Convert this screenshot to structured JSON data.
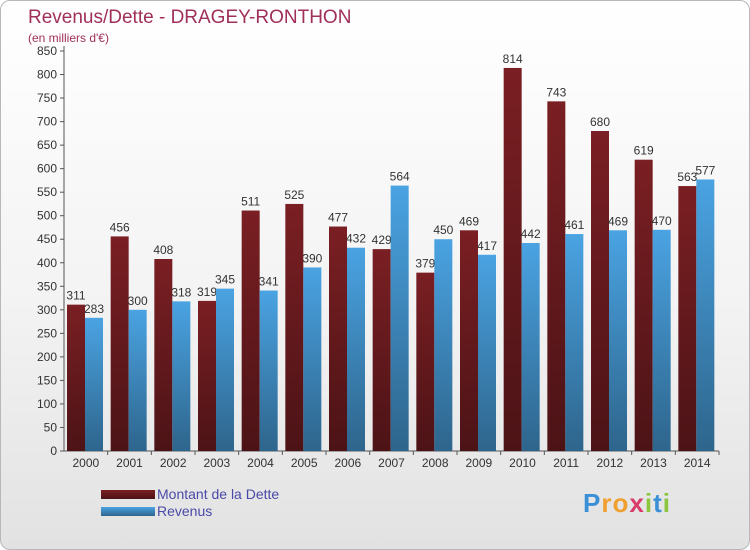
{
  "chart_data": {
    "type": "bar",
    "title": "Revenus/Dette - DRAGEY-RONTHON",
    "subtitle": "(en milliers d'€)",
    "categories": [
      "2000",
      "2001",
      "2002",
      "2003",
      "2004",
      "2005",
      "2006",
      "2007",
      "2008",
      "2009",
      "2010",
      "2011",
      "2012",
      "2013",
      "2014"
    ],
    "series": [
      {
        "name": "Montant de la Dette",
        "color": "#7a1f23",
        "values": [
          311,
          456,
          408,
          319,
          511,
          525,
          477,
          429,
          379,
          469,
          814,
          743,
          680,
          619,
          563
        ]
      },
      {
        "name": "Revenus",
        "color": "#4aa3e2",
        "values": [
          283,
          300,
          318,
          345,
          341,
          390,
          432,
          564,
          450,
          417,
          442,
          461,
          469,
          470,
          577
        ]
      }
    ],
    "ylim": [
      0,
      850
    ],
    "ytick_step": 50,
    "grid": false,
    "legend_position": "bottom-left"
  },
  "branding": {
    "logo_letters": [
      "P",
      "r",
      "o",
      "x",
      "i",
      "t",
      "i"
    ],
    "logo_colors": [
      "#3a8fd6",
      "#f0a030",
      "#f0a030",
      "#d83a6a",
      "#8cc63f",
      "#3a8fd6",
      "#8cc63f"
    ]
  }
}
